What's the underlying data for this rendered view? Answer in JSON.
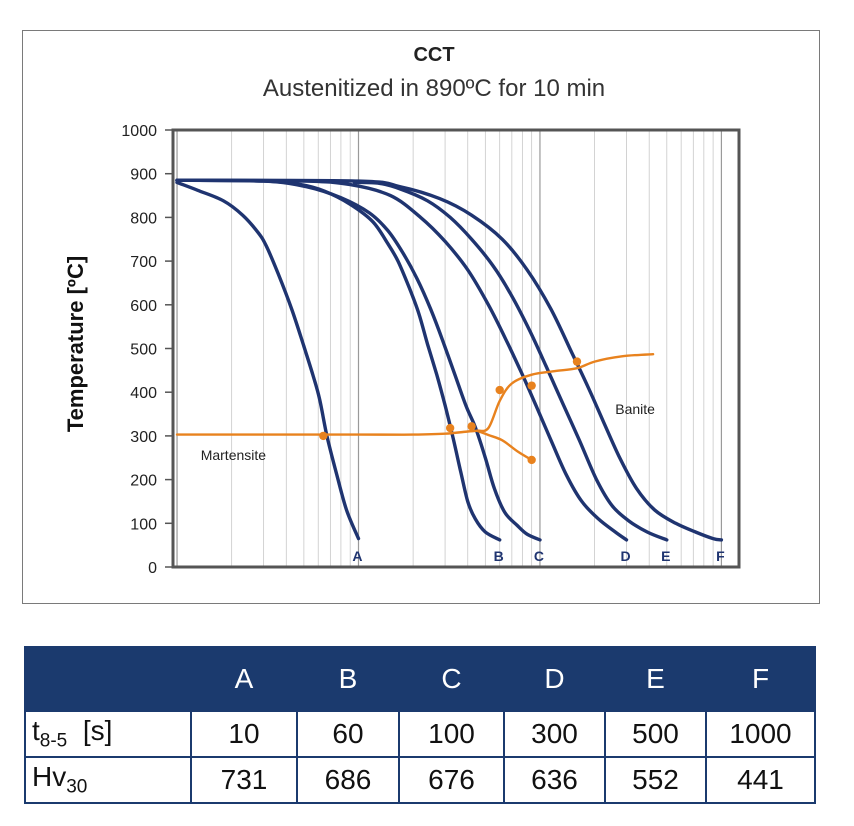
{
  "chart_data": {
    "type": "line",
    "title": "CCT",
    "subtitle": "Austenitized in 890ºC for 10 min",
    "xlabel": "",
    "ylabel": "Temperature [ºC]",
    "x_scale": "log",
    "ylim": [
      0,
      1000
    ],
    "y_ticks": [
      "0",
      "100",
      "200",
      "300",
      "400",
      "500",
      "600",
      "700",
      "800",
      "900",
      "1000"
    ],
    "grid": "vertical-log",
    "series": [
      {
        "name": "A",
        "color": "#1f3470",
        "points": [
          [
            1.0,
            880
          ],
          [
            1.3,
            862
          ],
          [
            1.8,
            838
          ],
          [
            2.3,
            805
          ],
          [
            2.8,
            765
          ],
          [
            3.1,
            735
          ],
          [
            3.6,
            672
          ],
          [
            4.3,
            588
          ],
          [
            5.0,
            505
          ],
          [
            5.6,
            440
          ],
          [
            6.1,
            385
          ],
          [
            6.7,
            300
          ],
          [
            7.6,
            210
          ],
          [
            8.6,
            130
          ],
          [
            10.0,
            65
          ]
        ]
      },
      {
        "name": "B",
        "color": "#1f3470",
        "points": [
          [
            1.0,
            885
          ],
          [
            3.0,
            883
          ],
          [
            4.8,
            875
          ],
          [
            6.5,
            860
          ],
          [
            9.0,
            830
          ],
          [
            12.0,
            790
          ],
          [
            14.5,
            740
          ],
          [
            16.5,
            700
          ],
          [
            19.0,
            640
          ],
          [
            21.5,
            580
          ],
          [
            24.0,
            510
          ],
          [
            27.0,
            440
          ],
          [
            30.0,
            370
          ],
          [
            33.0,
            300
          ],
          [
            36.5,
            220
          ],
          [
            40.0,
            150
          ],
          [
            44.0,
            110
          ],
          [
            50.0,
            80
          ],
          [
            60.0,
            62
          ]
        ]
      },
      {
        "name": "C",
        "color": "#1f3470",
        "points": [
          [
            1.0,
            885
          ],
          [
            3.0,
            883
          ],
          [
            5.2,
            870
          ],
          [
            8.0,
            845
          ],
          [
            11.5,
            810
          ],
          [
            14.5,
            770
          ],
          [
            17.5,
            720
          ],
          [
            21.0,
            660
          ],
          [
            25.0,
            590
          ],
          [
            29.0,
            520
          ],
          [
            34.0,
            440
          ],
          [
            39.0,
            370
          ],
          [
            44.0,
            320
          ],
          [
            50.0,
            250
          ],
          [
            56.0,
            180
          ],
          [
            64.0,
            125
          ],
          [
            75.0,
            95
          ],
          [
            85.0,
            75
          ],
          [
            100.0,
            62
          ]
        ]
      },
      {
        "name": "D",
        "color": "#1f3470",
        "points": [
          [
            1.0,
            885
          ],
          [
            5.0,
            883
          ],
          [
            9.0,
            875
          ],
          [
            15.0,
            850
          ],
          [
            22.0,
            800
          ],
          [
            30.0,
            745
          ],
          [
            40.0,
            680
          ],
          [
            52.0,
            600
          ],
          [
            65.0,
            520
          ],
          [
            80.0,
            440
          ],
          [
            95.0,
            370
          ],
          [
            115.0,
            290
          ],
          [
            140.0,
            210
          ],
          [
            170.0,
            150
          ],
          [
            210.0,
            110
          ],
          [
            260.0,
            80
          ],
          [
            300.0,
            62
          ]
        ]
      },
      {
        "name": "E",
        "color": "#1f3470",
        "points": [
          [
            9.5,
            880
          ],
          [
            13.0,
            878
          ],
          [
            17.0,
            865
          ],
          [
            24.0,
            838
          ],
          [
            32.0,
            800
          ],
          [
            42.0,
            750
          ],
          [
            55.0,
            690
          ],
          [
            70.0,
            620
          ],
          [
            88.0,
            540
          ],
          [
            108.0,
            460
          ],
          [
            135.0,
            370
          ],
          [
            165.0,
            290
          ],
          [
            205.0,
            200
          ],
          [
            250.0,
            140
          ],
          [
            310.0,
            105
          ],
          [
            390.0,
            80
          ],
          [
            500.0,
            62
          ]
        ]
      },
      {
        "name": "F",
        "color": "#1f3470",
        "points": [
          [
            1.0,
            885
          ],
          [
            10.0,
            883
          ],
          [
            17.0,
            870
          ],
          [
            28.0,
            843
          ],
          [
            42.0,
            805
          ],
          [
            62.0,
            750
          ],
          [
            85.0,
            680
          ],
          [
            115.0,
            590
          ],
          [
            150.0,
            490
          ],
          [
            185.0,
            410
          ],
          [
            225.0,
            330
          ],
          [
            275.0,
            250
          ],
          [
            340.0,
            180
          ],
          [
            430.0,
            130
          ],
          [
            560.0,
            100
          ],
          [
            720.0,
            80
          ],
          [
            900.0,
            65
          ],
          [
            1000.0,
            62
          ]
        ]
      },
      {
        "name": "",
        "color": "#e8821e",
        "points": [
          [
            1.0,
            303
          ],
          [
            10.0,
            303
          ],
          [
            20.0,
            303
          ],
          [
            30.0,
            305
          ],
          [
            40.0,
            310
          ],
          [
            45.0,
            312
          ],
          [
            52.0,
            318
          ],
          [
            60.0,
            380
          ],
          [
            70.0,
            420
          ],
          [
            90.0,
            440
          ],
          [
            120.0,
            448
          ],
          [
            160.0,
            455
          ],
          [
            200.0,
            470
          ],
          [
            280.0,
            482
          ],
          [
            420.0,
            487
          ]
        ]
      },
      {
        "name": "",
        "color": "#e8821e",
        "points": [
          [
            45.0,
            312
          ],
          [
            52.0,
            302
          ],
          [
            62.0,
            290
          ],
          [
            75.0,
            265
          ],
          [
            90.0,
            245
          ]
        ]
      }
    ],
    "markers": [
      {
        "x": 6.4,
        "y": 300
      },
      {
        "x": 32.0,
        "y": 318
      },
      {
        "x": 42.0,
        "y": 322
      },
      {
        "x": 60.0,
        "y": 405
      },
      {
        "x": 90.0,
        "y": 415
      },
      {
        "x": 90.0,
        "y": 245
      },
      {
        "x": 160.0,
        "y": 470
      }
    ],
    "annotations": [
      {
        "text": "Martensite",
        "x": 1.35,
        "y": 245
      },
      {
        "text": "Banite",
        "x": 260.0,
        "y": 350
      }
    ],
    "end_labels": [
      {
        "text": "A",
        "x": 10.0
      },
      {
        "text": "B",
        "x": 60.0
      },
      {
        "text": "C",
        "x": 100.0
      },
      {
        "text": "D",
        "x": 300.0
      },
      {
        "text": "E",
        "x": 500.0
      },
      {
        "text": "F",
        "x": 1000.0
      }
    ]
  },
  "table": {
    "columns": [
      "",
      "A",
      "B",
      "C",
      "D",
      "E",
      "F"
    ],
    "row_t": {
      "label": "t",
      "sub": "8-5",
      "unit": "[s]",
      "values": [
        "10",
        "60",
        "100",
        "300",
        "500",
        "1000"
      ]
    },
    "row_hv": {
      "label": "Hv",
      "sub": "30",
      "values": [
        "731",
        "686",
        "676",
        "636",
        "552",
        "441"
      ]
    }
  }
}
